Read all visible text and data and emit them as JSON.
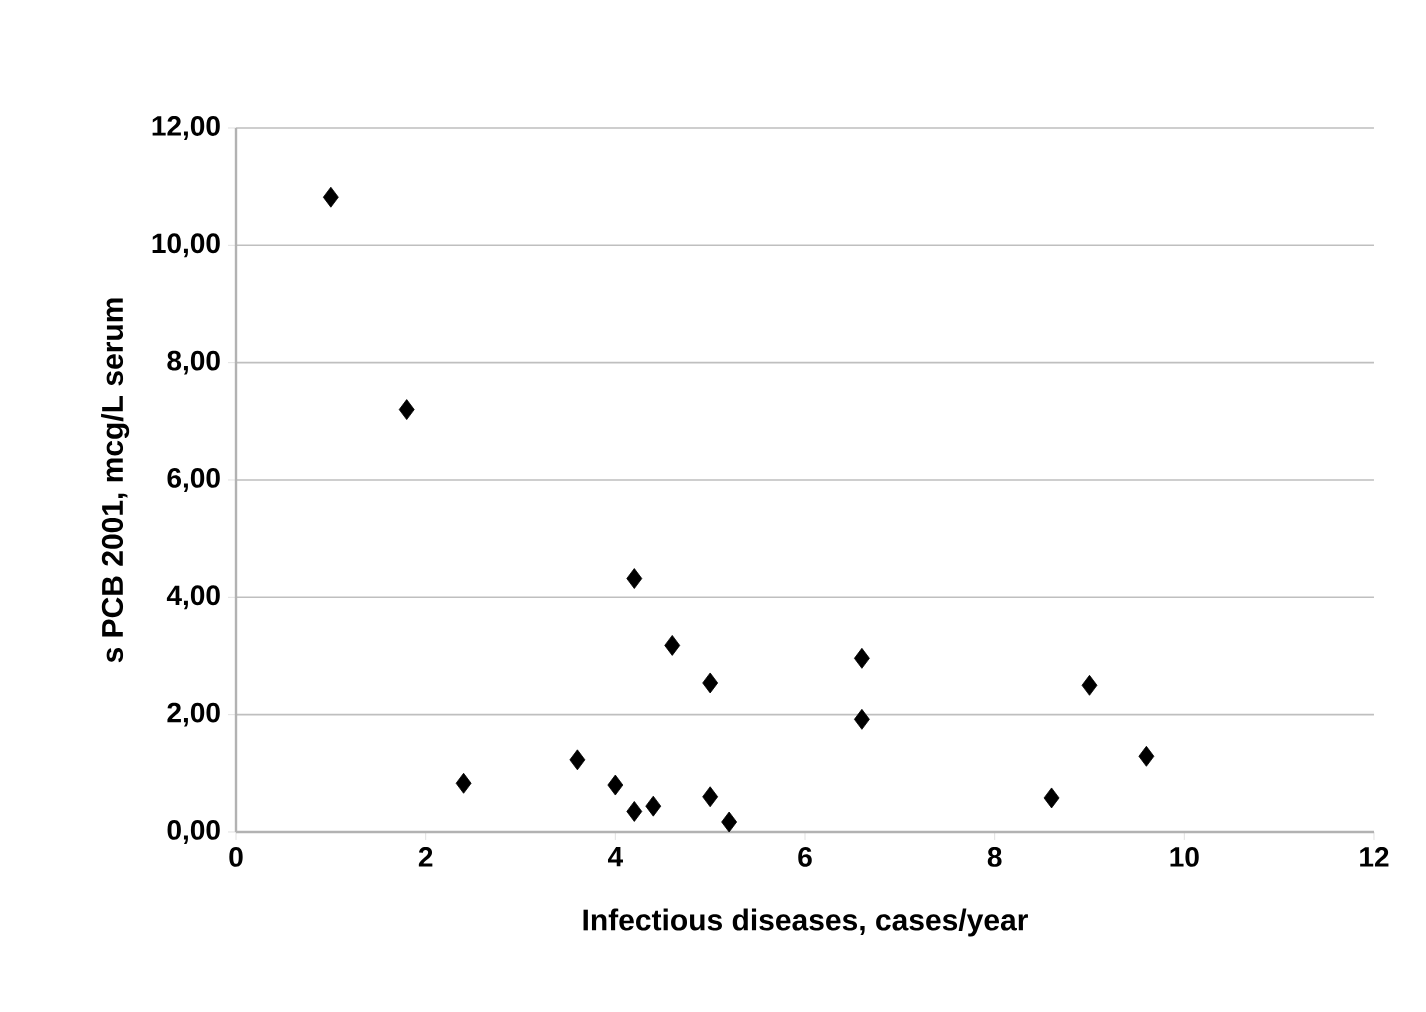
{
  "chart_data": {
    "type": "scatter",
    "xlabel": "Infectious diseases, cases/year",
    "ylabel": "s PCB 2001, mcg/L serum",
    "x": [
      1.0,
      1.8,
      2.4,
      3.6,
      4.0,
      4.2,
      4.4,
      4.2,
      4.6,
      5.0,
      5.0,
      5.2,
      6.6,
      6.6,
      8.6,
      9.0,
      9.6
    ],
    "series": [
      {
        "color": "#000000",
        "values": [
          10.82,
          7.2,
          0.83,
          1.23,
          0.8,
          0.35,
          0.44,
          4.32,
          3.18,
          2.54,
          0.6,
          0.17,
          2.96,
          1.92,
          0.58,
          2.5,
          1.29
        ]
      }
    ],
    "xlim": [
      0,
      12
    ],
    "xticks": [
      0,
      2,
      4,
      6,
      8,
      10,
      12
    ],
    "ylim": [
      0,
      12
    ],
    "yticks": [
      {
        "value": 0,
        "label": "0,00"
      },
      {
        "value": 2,
        "label": "2,00"
      },
      {
        "value": 4,
        "label": "4,00"
      },
      {
        "value": 6,
        "label": "6,00"
      },
      {
        "value": 8,
        "label": "8,00"
      },
      {
        "value": 10,
        "label": "10,00"
      },
      {
        "value": 12,
        "label": "12,00"
      }
    ],
    "grid": "y",
    "marker": "diamond"
  }
}
